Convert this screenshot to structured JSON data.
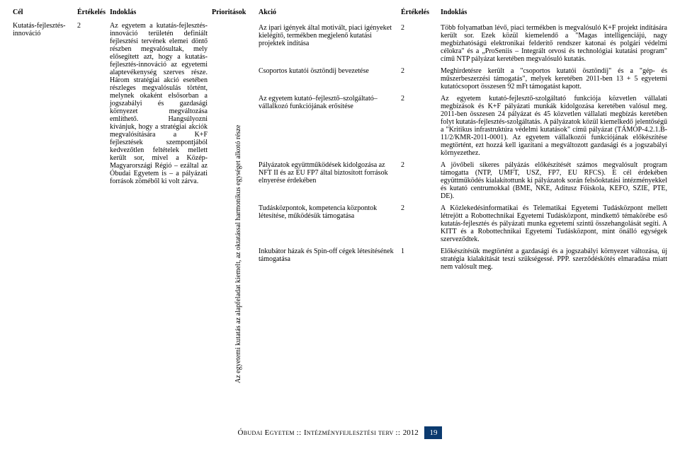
{
  "headers": {
    "cel": "Cél",
    "ertekeles": "Értékelés",
    "indoklas": "Indoklás",
    "prioritasok": "Prioritások",
    "akcio": "Akció"
  },
  "left": {
    "cel": "Kutatás-fejlesztés-innováció",
    "ertekeles": "2",
    "indoklas": "Az egyetem a kutatás-fejlesztés-innováció területén definiált fejlesztési tervének elemei döntő részben megvalósultak, mely elősegített azt, hogy a kutatás-fejlesztés-innováció az egyetemi alaptevékenység szerves része. Három stratégiai akció esetében részleges megvalósulás történt, melynek okaként elsősorban a jogszabályi és gazdasági környezet megváltozása említhető. Hangsúlyozni kívánjuk, hogy a stratégiai akciók megvalósítására a K+F fejlesztések szempontjából kedvezőtlen feltételek mellett került sor, mivel a Közép-Magyarországi Régió – ezáltal az Óbudai Egyetem is – a pályázati források zöméből ki volt zárva.",
    "prioritas": "Az egyetemi kutatás az alapfeladat kiemelt, az oktatással harmonikus egységet alkotó része"
  },
  "rows": [
    {
      "akcio": "Az ipari igények által motivált, piaci igényeket kielégítő, termékben megjelenő kutatási projektek indítása",
      "ertekeles": "2",
      "indoklas": "Több folyamatban lévő, piaci termékben is megvalósuló K+F projekt indítására került sor. Ezek közül kiemelendő a \"Magas intelligenciájú, nagy megbízhatóságú elektronikai felderítő rendszer katonai és polgári védelmi célokra\" és a „ProSeniis – Integrált orvosi és technológiai kutatási program\" című NTP pályázat keretében megvalósuló kutatás."
    },
    {
      "akcio": "Csoportos kutatói ösztöndíj bevezetése",
      "ertekeles": "2",
      "indoklas": "Meghirdetésre került a \"csoportos kutatói ösztöndíj\" és a \"gép- és műszerbeszerzési támogatás\", melyek keretében 2011-ben 13 + 5 egyetemi kutatócsoport összesen 92 mFt támogatást kapott."
    },
    {
      "akcio": "Az egyetem kutató–fejlesztő–szolgáltató–vállalkozó funkciójának erősítése",
      "ertekeles": "2",
      "indoklas": "Az egyetem kutató-fejlesztő-szolgáltató funkciója közvetlen vállalati megbízások és K+F pályázati munkák kidolgozása keretében valósul meg. 2011-ben összesen 24 pályázat és 45 közvetlen vállalati megbízás keretében folyt kutatás-fejlesztés-szolgáltatás. A pályázatok közül kiemelkedő jelentőségű a \"Kritikus infrastruktúra védelmi kutatások\" című pályázat (TÁMOP-4.2.1.B-11/2/KMR-2011-0001). Az egyetem vállalkozói funkciójának előkészítése megtörtént, ezt hozzá kell igazítani a megváltozott gazdasági és a jogszabályi környezethez."
    },
    {
      "akcio": "Pályázatok együttműködések kidolgozása az NFT II és az EU FP7 által biztosított források elnyerése érdekében",
      "ertekeles": "2",
      "indoklas": "A jövőbeli sikeres pályázás előkészítését számos megvalósult program támogatta (NTP, UMFT, USZ, FP7, EU RFCS). E cél érdekében együttműködés kialakítottunk ki pályázatok során felsőoktatási intézményekkel és kutató centrumokkal (BME, NKE, Aditusz Főiskola, KEFO, SZIE, PTE, DE)."
    },
    {
      "akcio": "Tudásközpontok, kompetencia központok létesítése, működésük támogatása",
      "ertekeles": "2",
      "indoklas": "A Közlekedésinformatikai és Telematikai Egyetemi Tudásközpont mellett létrejött a Robottechnikai Egyetemi Tudásközpont, mindkettő témakörébe eső kutatás-fejlesztés és pályázati munka egyetemi szintű összehangolását segíti. A KITT és a Robottechnikai Egyetemi Tudásközpont, mint önálló egységek szerveződtek."
    },
    {
      "akcio": "Inkubátor házak és Spin-off cégek létesítésének támogatása",
      "ertekeles": "1",
      "indoklas": "Előkészítésük megtörtént a gazdasági és a jogszabályi környezet változása, új stratégia kialakítását teszi szükségessé. PPP. szerződéskötés elmaradása miatt nem valósult meg."
    }
  ],
  "footer": {
    "title_part1": "Óbudai Egyetem",
    "sep": " :: ",
    "title_part2": "Intézményfejlesztési terv",
    "year": "2012",
    "page": "19"
  },
  "style": {
    "page_number_bg": "#0b3a6f",
    "page_number_fg": "#ffffff"
  }
}
